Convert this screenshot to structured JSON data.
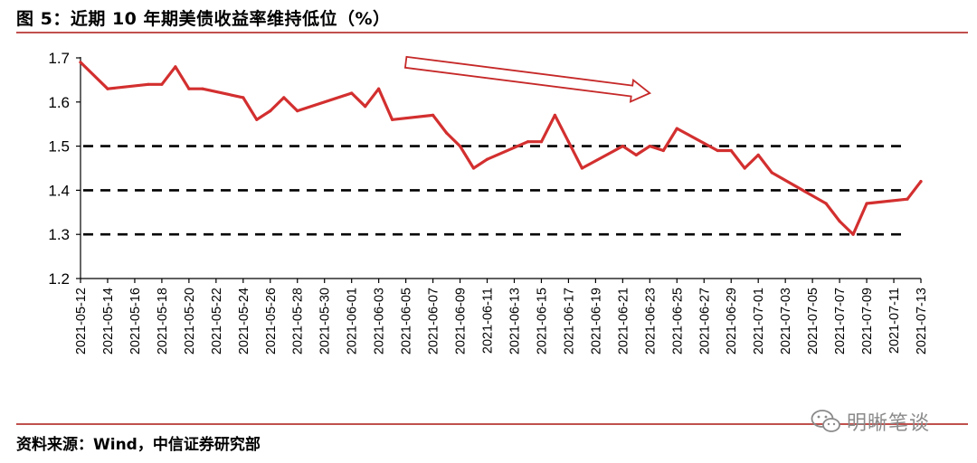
{
  "header": {
    "title": "图 5：近期 10 年期美债收益率维持低位（%）"
  },
  "footer": {
    "source": "资料来源：Wind，中信证券研究部"
  },
  "watermark": {
    "text": "明晰笔谈",
    "icon": "wechat-icon"
  },
  "colors": {
    "series": "#d32f2f",
    "rule": "#c0504d",
    "arrow": "#c62828",
    "refline": "#000000"
  },
  "chart_data": {
    "type": "line",
    "ylim": [
      1.2,
      1.7
    ],
    "yticks": [
      1.2,
      1.3,
      1.4,
      1.5,
      1.6,
      1.7
    ],
    "x_range": [
      "2021-05-12",
      "2021-07-13"
    ],
    "xticks": [
      "2021-05-12",
      "2021-05-14",
      "2021-05-16",
      "2021-05-18",
      "2021-05-20",
      "2021-05-22",
      "2021-05-24",
      "2021-05-26",
      "2021-05-28",
      "2021-05-30",
      "2021-06-01",
      "2021-06-03",
      "2021-06-05",
      "2021-06-07",
      "2021-06-09",
      "2021-06-11",
      "2021-06-13",
      "2021-06-15",
      "2021-06-17",
      "2021-06-19",
      "2021-06-21",
      "2021-06-23",
      "2021-06-25",
      "2021-06-27",
      "2021-06-29",
      "2021-07-01",
      "2021-07-03",
      "2021-07-05",
      "2021-07-07",
      "2021-07-09",
      "2021-07-11",
      "2021-07-13"
    ],
    "reference_lines": [
      1.5,
      1.4,
      1.3
    ],
    "reference_style": "dashed",
    "annotation": {
      "type": "downtrend-arrow",
      "from": [
        "2021-06-05",
        1.69
      ],
      "to": [
        "2021-06-23",
        1.62
      ]
    },
    "series": [
      {
        "x": [
          "2021-05-12",
          "2021-05-14",
          "2021-05-17",
          "2021-05-18",
          "2021-05-19",
          "2021-05-20",
          "2021-05-21",
          "2021-05-24",
          "2021-05-25",
          "2021-05-26",
          "2021-05-27",
          "2021-05-28",
          "2021-06-01",
          "2021-06-02",
          "2021-06-03",
          "2021-06-04",
          "2021-06-07",
          "2021-06-08",
          "2021-06-09",
          "2021-06-10",
          "2021-06-11",
          "2021-06-14",
          "2021-06-15",
          "2021-06-16",
          "2021-06-17",
          "2021-06-18",
          "2021-06-21",
          "2021-06-22",
          "2021-06-23",
          "2021-06-24",
          "2021-06-25",
          "2021-06-28",
          "2021-06-29",
          "2021-06-30",
          "2021-07-01",
          "2021-07-02",
          "2021-07-06",
          "2021-07-07",
          "2021-07-08",
          "2021-07-09",
          "2021-07-12",
          "2021-07-13"
        ],
        "values": [
          1.69,
          1.63,
          1.64,
          1.64,
          1.68,
          1.63,
          1.63,
          1.61,
          1.56,
          1.58,
          1.61,
          1.58,
          1.62,
          1.59,
          1.63,
          1.56,
          1.57,
          1.53,
          1.5,
          1.45,
          1.47,
          1.51,
          1.51,
          1.57,
          1.51,
          1.45,
          1.5,
          1.48,
          1.5,
          1.49,
          1.54,
          1.49,
          1.49,
          1.45,
          1.48,
          1.44,
          1.37,
          1.33,
          1.3,
          1.37,
          1.38,
          1.42
        ]
      }
    ]
  }
}
